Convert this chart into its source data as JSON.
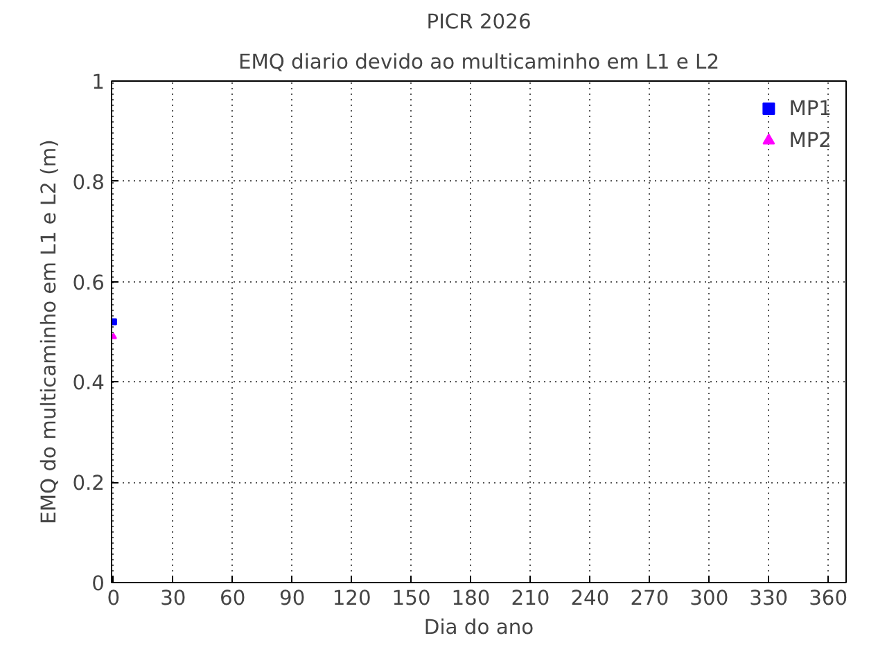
{
  "chart_data": {
    "type": "scatter",
    "title": "PICR 2026",
    "subtitle": "EMQ diario devido ao multicaminho em L1 e L2",
    "xlabel": "Dia do ano",
    "ylabel": "EMQ do multicaminho em L1 e L2 (m)",
    "x": [
      0
    ],
    "series": [
      {
        "name": "MP1",
        "color": "#0000ff",
        "values": [
          0.52
        ],
        "marker": "square"
      },
      {
        "name": "MP2",
        "color": "#ff00ff",
        "values": [
          0.49
        ],
        "marker": "triangle"
      }
    ],
    "xlim": [
      -1,
      369
    ],
    "xticks": [
      0,
      30,
      60,
      90,
      120,
      150,
      180,
      210,
      240,
      270,
      300,
      330,
      360
    ],
    "ylim": [
      0,
      1
    ],
    "yticks": [
      0,
      0.2,
      0.4,
      0.6,
      0.8,
      1
    ],
    "grid": true,
    "legend": "top right",
    "line_style": "dotted"
  }
}
